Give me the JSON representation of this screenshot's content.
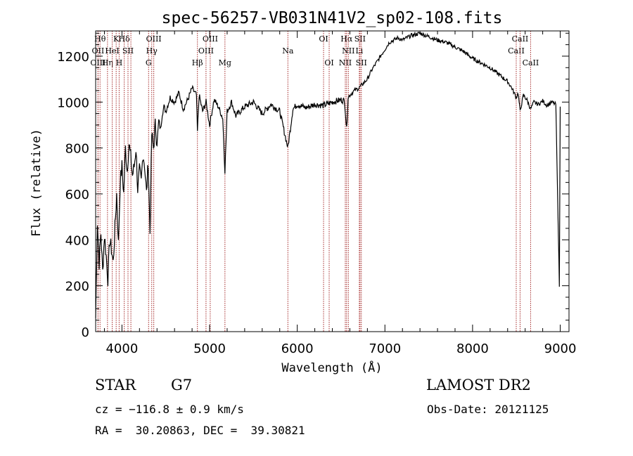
{
  "chart_data": {
    "type": "line",
    "title": "spec-56257-VB031N41V2_sp02-108.fits",
    "xlabel": "Wavelength (Å)",
    "ylabel": "Flux (relative)",
    "xlim": [
      3700,
      9100
    ],
    "ylim": [
      0,
      1310
    ],
    "xticks": [
      4000,
      5000,
      6000,
      7000,
      8000,
      9000
    ],
    "yticks": [
      0,
      200,
      400,
      600,
      800,
      1000,
      1200
    ],
    "grid": false,
    "line_color": "#000000",
    "marker_color": "#a52a2a",
    "series": [
      {
        "x": [
          3700,
          3720,
          3740,
          3760,
          3780,
          3800,
          3820,
          3840,
          3860,
          3880,
          3900,
          3920,
          3940,
          3960,
          3980,
          4000,
          4020,
          4040,
          4060,
          4080,
          4100,
          4120,
          4140,
          4160,
          4180,
          4200,
          4220,
          4240,
          4260,
          4280,
          4300,
          4320,
          4340,
          4360,
          4380,
          4400,
          4420,
          4440,
          4460,
          4480,
          4500,
          4550,
          4600,
          4650,
          4700,
          4750,
          4800,
          4850,
          4861,
          4880,
          4920,
          4960,
          5000,
          5050,
          5100,
          5150,
          5175,
          5200,
          5250,
          5300,
          5400,
          5500,
          5600,
          5700,
          5800,
          5893,
          5950,
          6000,
          6100,
          6200,
          6300,
          6400,
          6500,
          6540,
          6563,
          6580,
          6600,
          6650,
          6700,
          6750,
          6800,
          6850,
          6900,
          6950,
          7000,
          7050,
          7100,
          7150,
          7200,
          7300,
          7400,
          7500,
          7600,
          7700,
          7800,
          7900,
          8000,
          8100,
          8200,
          8300,
          8400,
          8450,
          8498,
          8520,
          8542,
          8580,
          8620,
          8662,
          8700,
          8750,
          8800,
          8850,
          8900,
          8950,
          8990,
          9000
        ],
        "values": [
          60,
          480,
          300,
          430,
          260,
          420,
          330,
          230,
          400,
          360,
          300,
          450,
          600,
          380,
          650,
          720,
          600,
          800,
          700,
          820,
          760,
          680,
          720,
          800,
          620,
          700,
          650,
          780,
          720,
          600,
          740,
          430,
          860,
          800,
          900,
          820,
          920,
          880,
          950,
          980,
          960,
          1020,
          1000,
          1040,
          970,
          1010,
          1060,
          1030,
          870,
          1030,
          960,
          1000,
          900,
          1010,
          980,
          930,
          700,
          960,
          1000,
          940,
          980,
          1000,
          950,
          990,
          960,
          800,
          970,
          990,
          975,
          990,
          985,
          1000,
          1010,
          1005,
          880,
          1020,
          1030,
          1050,
          1060,
          1080,
          1100,
          1140,
          1170,
          1200,
          1230,
          1260,
          1270,
          1280,
          1270,
          1290,
          1300,
          1285,
          1270,
          1260,
          1240,
          1220,
          1190,
          1170,
          1150,
          1120,
          1090,
          1060,
          1020,
          1040,
          960,
          1030,
          1010,
          970,
          1000,
          990,
          1005,
          985,
          1000,
          990,
          200,
          980
        ]
      }
    ],
    "lines": [
      {
        "wavelength": 3750,
        "label": "Hθ",
        "row": 0
      },
      {
        "wavelength": 3727,
        "label": "OII",
        "row": 1
      },
      {
        "wavelength": 3727,
        "label": "OIII",
        "row": 2
      },
      {
        "wavelength": 3835,
        "label": "Hη",
        "row": 2
      },
      {
        "wavelength": 3889,
        "label": "HeI",
        "row": 1
      },
      {
        "wavelength": 3934,
        "label": "K",
        "row": 0
      },
      {
        "wavelength": 3968,
        "label": "H",
        "row": 2
      },
      {
        "wavelength": 4026,
        "label": "Hδ",
        "row": 0
      },
      {
        "wavelength": 4069,
        "label": "SII",
        "row": 1
      },
      {
        "wavelength": 4102,
        "label": "",
        "row": 3
      },
      {
        "wavelength": 4340,
        "label": "Hγ",
        "row": 1
      },
      {
        "wavelength": 4304,
        "label": "G",
        "row": 2
      },
      {
        "wavelength": 4363,
        "label": "OIII",
        "row": 0
      },
      {
        "wavelength": 4861,
        "label": "Hβ",
        "row": 2
      },
      {
        "wavelength": 4959,
        "label": "OIII",
        "row": 1
      },
      {
        "wavelength": 5007,
        "label": "OIII",
        "row": 0
      },
      {
        "wavelength": 5175,
        "label": "Mg",
        "row": 2
      },
      {
        "wavelength": 5893,
        "label": "Na",
        "row": 1
      },
      {
        "wavelength": 6300,
        "label": "OI",
        "row": 0
      },
      {
        "wavelength": 6364,
        "label": "OI",
        "row": 2
      },
      {
        "wavelength": 6548,
        "label": "NII",
        "row": 2
      },
      {
        "wavelength": 6563,
        "label": "Hα",
        "row": 0
      },
      {
        "wavelength": 6583,
        "label": "NII",
        "row": 1
      },
      {
        "wavelength": 6708,
        "label": "Li",
        "row": 1
      },
      {
        "wavelength": 6716,
        "label": "SII",
        "row": 0
      },
      {
        "wavelength": 6731,
        "label": "SII",
        "row": 2
      },
      {
        "wavelength": 8498,
        "label": "CaII",
        "row": 1
      },
      {
        "wavelength": 8542,
        "label": "CaII",
        "row": 0
      },
      {
        "wavelength": 8662,
        "label": "CaII",
        "row": 2
      }
    ]
  },
  "info": {
    "object_class": "STAR",
    "subclass": "G7",
    "survey": "LAMOST DR2",
    "cz": "cz = −116.8 ± 0.9 km/s",
    "obs_date": "Obs-Date: 20121125",
    "coords": "RA =  30.20863, DEC =  39.30821"
  }
}
